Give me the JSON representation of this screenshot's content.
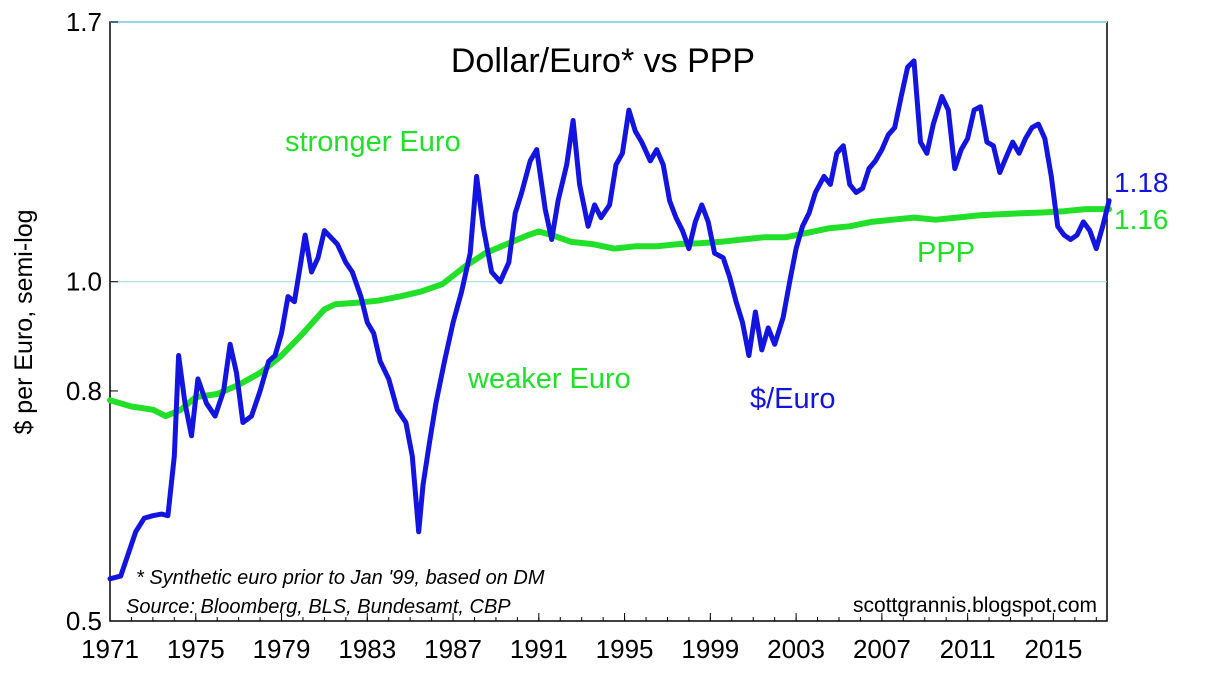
{
  "chart_data": {
    "type": "line",
    "title": "Dollar/Euro* vs PPP",
    "ylabel": "$ per Euro, semi-log",
    "y_scale": "log",
    "ylim": [
      0.5,
      1.7
    ],
    "xlim": [
      1971,
      2017.5
    ],
    "y_ticks": [
      {
        "value": 0.5,
        "label": "0.5"
      },
      {
        "value": 0.8,
        "label": "0.8"
      },
      {
        "value": 1.0,
        "label": "1.0"
      },
      {
        "value": 1.7,
        "label": "1.7"
      }
    ],
    "x_ticks": [
      {
        "value": 1971,
        "label": "1971"
      },
      {
        "value": 1975,
        "label": "1975"
      },
      {
        "value": 1979,
        "label": "1979"
      },
      {
        "value": 1983,
        "label": "1983"
      },
      {
        "value": 1987,
        "label": "1987"
      },
      {
        "value": 1991,
        "label": "1991"
      },
      {
        "value": 1995,
        "label": "1995"
      },
      {
        "value": 1999,
        "label": "1999"
      },
      {
        "value": 2003,
        "label": "2003"
      },
      {
        "value": 2007,
        "label": "2007"
      },
      {
        "value": 2011,
        "label": "2011"
      },
      {
        "value": 2015,
        "label": "2015"
      }
    ],
    "reference_line": 1.0,
    "series": [
      {
        "name": "$/Euro",
        "color": "#1414e0",
        "end_label": "1.18",
        "points": [
          [
            1971.0,
            0.545
          ],
          [
            1971.5,
            0.548
          ],
          [
            1971.8,
            0.57
          ],
          [
            1972.2,
            0.6
          ],
          [
            1972.6,
            0.617
          ],
          [
            1973.0,
            0.62
          ],
          [
            1973.4,
            0.622
          ],
          [
            1973.7,
            0.62
          ],
          [
            1974.0,
            0.7
          ],
          [
            1974.2,
            0.86
          ],
          [
            1974.5,
            0.78
          ],
          [
            1974.8,
            0.73
          ],
          [
            1975.1,
            0.82
          ],
          [
            1975.5,
            0.78
          ],
          [
            1975.9,
            0.76
          ],
          [
            1976.3,
            0.8
          ],
          [
            1976.6,
            0.88
          ],
          [
            1976.9,
            0.83
          ],
          [
            1977.2,
            0.75
          ],
          [
            1977.6,
            0.76
          ],
          [
            1978.0,
            0.8
          ],
          [
            1978.4,
            0.85
          ],
          [
            1978.7,
            0.86
          ],
          [
            1979.0,
            0.9
          ],
          [
            1979.3,
            0.97
          ],
          [
            1979.6,
            0.96
          ],
          [
            1979.9,
            1.04
          ],
          [
            1980.1,
            1.1
          ],
          [
            1980.4,
            1.02
          ],
          [
            1980.7,
            1.05
          ],
          [
            1981.0,
            1.11
          ],
          [
            1981.2,
            1.1
          ],
          [
            1981.6,
            1.08
          ],
          [
            1982.0,
            1.04
          ],
          [
            1982.3,
            1.02
          ],
          [
            1982.7,
            0.97
          ],
          [
            1983.0,
            0.92
          ],
          [
            1983.3,
            0.9
          ],
          [
            1983.6,
            0.85
          ],
          [
            1984.0,
            0.82
          ],
          [
            1984.4,
            0.77
          ],
          [
            1984.8,
            0.75
          ],
          [
            1985.1,
            0.7
          ],
          [
            1985.4,
            0.6
          ],
          [
            1985.6,
            0.66
          ],
          [
            1985.9,
            0.72
          ],
          [
            1986.2,
            0.78
          ],
          [
            1986.6,
            0.85
          ],
          [
            1987.0,
            0.92
          ],
          [
            1987.4,
            0.98
          ],
          [
            1987.8,
            1.06
          ],
          [
            1988.1,
            1.24
          ],
          [
            1988.4,
            1.12
          ],
          [
            1988.8,
            1.02
          ],
          [
            1989.2,
            1.0
          ],
          [
            1989.6,
            1.04
          ],
          [
            1989.9,
            1.15
          ],
          [
            1990.2,
            1.2
          ],
          [
            1990.6,
            1.28
          ],
          [
            1990.9,
            1.31
          ],
          [
            1991.3,
            1.16
          ],
          [
            1991.6,
            1.09
          ],
          [
            1991.9,
            1.18
          ],
          [
            1992.3,
            1.27
          ],
          [
            1992.6,
            1.39
          ],
          [
            1992.9,
            1.22
          ],
          [
            1993.3,
            1.12
          ],
          [
            1993.6,
            1.17
          ],
          [
            1993.9,
            1.14
          ],
          [
            1994.3,
            1.17
          ],
          [
            1994.6,
            1.27
          ],
          [
            1994.9,
            1.3
          ],
          [
            1995.2,
            1.42
          ],
          [
            1995.5,
            1.36
          ],
          [
            1995.8,
            1.33
          ],
          [
            1996.2,
            1.28
          ],
          [
            1996.5,
            1.31
          ],
          [
            1996.8,
            1.27
          ],
          [
            1997.1,
            1.18
          ],
          [
            1997.4,
            1.14
          ],
          [
            1997.7,
            1.11
          ],
          [
            1998.0,
            1.07
          ],
          [
            1998.3,
            1.13
          ],
          [
            1998.6,
            1.17
          ],
          [
            1998.9,
            1.13
          ],
          [
            1999.2,
            1.06
          ],
          [
            1999.6,
            1.05
          ],
          [
            1999.9,
            1.01
          ],
          [
            2000.2,
            0.96
          ],
          [
            2000.5,
            0.92
          ],
          [
            2000.8,
            0.86
          ],
          [
            2001.1,
            0.94
          ],
          [
            2001.4,
            0.87
          ],
          [
            2001.7,
            0.91
          ],
          [
            2002.0,
            0.88
          ],
          [
            2002.4,
            0.93
          ],
          [
            2002.7,
            1.0
          ],
          [
            2003.0,
            1.07
          ],
          [
            2003.3,
            1.12
          ],
          [
            2003.6,
            1.15
          ],
          [
            2003.9,
            1.2
          ],
          [
            2004.3,
            1.24
          ],
          [
            2004.6,
            1.22
          ],
          [
            2004.9,
            1.3
          ],
          [
            2005.2,
            1.32
          ],
          [
            2005.5,
            1.22
          ],
          [
            2005.8,
            1.2
          ],
          [
            2006.1,
            1.21
          ],
          [
            2006.4,
            1.26
          ],
          [
            2006.7,
            1.28
          ],
          [
            2007.0,
            1.31
          ],
          [
            2007.3,
            1.35
          ],
          [
            2007.6,
            1.37
          ],
          [
            2007.9,
            1.46
          ],
          [
            2008.2,
            1.55
          ],
          [
            2008.5,
            1.57
          ],
          [
            2008.8,
            1.33
          ],
          [
            2009.1,
            1.3
          ],
          [
            2009.4,
            1.38
          ],
          [
            2009.8,
            1.46
          ],
          [
            2010.1,
            1.42
          ],
          [
            2010.4,
            1.26
          ],
          [
            2010.7,
            1.31
          ],
          [
            2011.0,
            1.34
          ],
          [
            2011.3,
            1.42
          ],
          [
            2011.6,
            1.43
          ],
          [
            2011.9,
            1.33
          ],
          [
            2012.2,
            1.32
          ],
          [
            2012.5,
            1.25
          ],
          [
            2012.8,
            1.29
          ],
          [
            2013.1,
            1.33
          ],
          [
            2013.4,
            1.3
          ],
          [
            2013.7,
            1.34
          ],
          [
            2014.0,
            1.37
          ],
          [
            2014.3,
            1.38
          ],
          [
            2014.6,
            1.34
          ],
          [
            2014.9,
            1.24
          ],
          [
            2015.2,
            1.12
          ],
          [
            2015.5,
            1.1
          ],
          [
            2015.8,
            1.09
          ],
          [
            2016.1,
            1.1
          ],
          [
            2016.4,
            1.13
          ],
          [
            2016.7,
            1.11
          ],
          [
            2017.0,
            1.07
          ],
          [
            2017.3,
            1.12
          ],
          [
            2017.6,
            1.18
          ]
        ]
      },
      {
        "name": "PPP",
        "color": "#22e02a",
        "end_label": "1.16",
        "points": [
          [
            1971.0,
            0.785
          ],
          [
            1972.0,
            0.775
          ],
          [
            1973.0,
            0.77
          ],
          [
            1973.6,
            0.76
          ],
          [
            1974.3,
            0.77
          ],
          [
            1975.0,
            0.79
          ],
          [
            1976.0,
            0.795
          ],
          [
            1977.0,
            0.81
          ],
          [
            1978.0,
            0.83
          ],
          [
            1979.0,
            0.86
          ],
          [
            1980.0,
            0.9
          ],
          [
            1981.0,
            0.945
          ],
          [
            1981.5,
            0.955
          ],
          [
            1982.5,
            0.958
          ],
          [
            1983.5,
            0.962
          ],
          [
            1984.5,
            0.97
          ],
          [
            1985.5,
            0.98
          ],
          [
            1986.5,
            0.995
          ],
          [
            1987.5,
            1.03
          ],
          [
            1988.5,
            1.06
          ],
          [
            1989.5,
            1.08
          ],
          [
            1990.5,
            1.1
          ],
          [
            1991.0,
            1.108
          ],
          [
            1991.6,
            1.1
          ],
          [
            1992.5,
            1.085
          ],
          [
            1993.5,
            1.08
          ],
          [
            1994.5,
            1.07
          ],
          [
            1995.5,
            1.075
          ],
          [
            1996.5,
            1.075
          ],
          [
            1997.5,
            1.08
          ],
          [
            1998.5,
            1.082
          ],
          [
            1999.5,
            1.085
          ],
          [
            2000.5,
            1.09
          ],
          [
            2001.5,
            1.095
          ],
          [
            2002.5,
            1.095
          ],
          [
            2003.5,
            1.105
          ],
          [
            2004.5,
            1.115
          ],
          [
            2005.5,
            1.12
          ],
          [
            2006.5,
            1.13
          ],
          [
            2007.5,
            1.135
          ],
          [
            2008.5,
            1.14
          ],
          [
            2009.5,
            1.135
          ],
          [
            2010.5,
            1.14
          ],
          [
            2011.5,
            1.145
          ],
          [
            2012.5,
            1.148
          ],
          [
            2013.5,
            1.15
          ],
          [
            2014.5,
            1.152
          ],
          [
            2015.5,
            1.155
          ],
          [
            2016.5,
            1.16
          ],
          [
            2017.6,
            1.16
          ]
        ]
      }
    ],
    "annotations": {
      "stronger": "stronger Euro",
      "weaker": "weaker Euro",
      "fx_label": "$/Euro",
      "ppp_label": "PPP"
    },
    "footnote": "* Synthetic euro prior to Jan '99, based on DM",
    "source": "Source:  Bloomberg, BLS, Bundesamt, CBP",
    "credit": "scottgrannis.blogspot.com"
  }
}
